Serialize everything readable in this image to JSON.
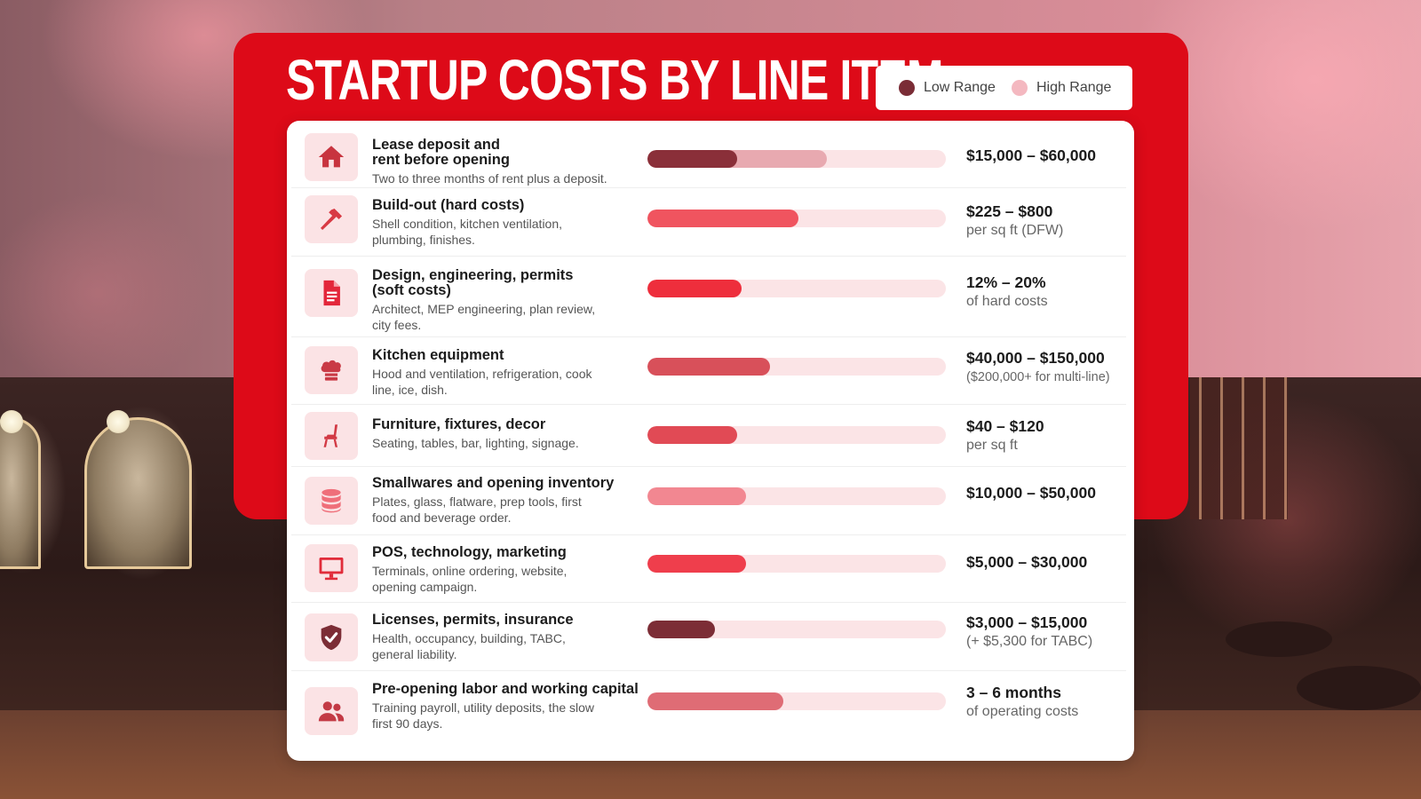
{
  "title": "STARTUP COSTS BY LINE ITEM",
  "legend": {
    "low": {
      "label": "Low Range",
      "color": "#7a2c36"
    },
    "high": {
      "label": "High Range",
      "color": "#f4b8c0"
    }
  },
  "chart_data": {
    "type": "bar",
    "title": "STARTUP COSTS BY LINE ITEM",
    "value_scale": "fraction of bar track (no axis printed)",
    "series": [
      {
        "name": "Low Range"
      },
      {
        "name": "High Range"
      }
    ],
    "items": [
      {
        "title": "Lease deposit and rent before opening",
        "desc": "Two to three months of rent plus a deposit.",
        "icon": "home-icon",
        "low": 0.3,
        "high": 0.6,
        "low_color": "#8a2f39",
        "high_color": "#e8a9b0",
        "value_main": "$15,000 – $60,000",
        "value_sub": ""
      },
      {
        "title": "Build-out (hard costs)",
        "desc": "Shell condition, kitchen ventilation, plumbing, finishes.",
        "icon": "hammer-icon",
        "low": 0.505,
        "high": 0.505,
        "low_color": "#f0545f",
        "high_color": "#f0545f",
        "value_main": "$225 – $800",
        "value_sub": "per sq ft (DFW)"
      },
      {
        "title": "Design, engineering, permits (soft costs)",
        "desc": "Architect, MEP engineering, plan review, city fees.",
        "icon": "document-icon",
        "low": 0.315,
        "high": 0.315,
        "low_color": "#ee2e3c",
        "high_color": "#ee2e3c",
        "value_main": "12% – 20%",
        "value_sub": "of hard costs"
      },
      {
        "title": "Kitchen equipment",
        "desc": "Hood and ventilation, refrigeration, cook line, ice, dish.",
        "icon": "chef-hat-icon",
        "low": 0.41,
        "high": 0.41,
        "low_color": "#d8505a",
        "high_color": "#d8505a",
        "value_main": "$40,000 – $150,000",
        "value_sub": "($200,000+ for multi-line)"
      },
      {
        "title": "Furniture, fixtures, decor",
        "desc": "Seating, tables, bar, lighting, signage.",
        "icon": "chair-icon",
        "low": 0.3,
        "high": 0.3,
        "low_color": "#e14a55",
        "high_color": "#e14a55",
        "value_main": "$40 – $120",
        "value_sub": "per sq ft"
      },
      {
        "title": "Smallwares and opening inventory",
        "desc": "Plates, glass, flatware, prep tools, first food and beverage order.",
        "icon": "stack-icon",
        "low": 0.33,
        "high": 0.33,
        "low_color": "#f28791",
        "high_color": "#f28791",
        "value_main": "$10,000 – $50,000",
        "value_sub": ""
      },
      {
        "title": "POS, technology, marketing",
        "desc": "Terminals, online ordering, website, opening campaign.",
        "icon": "monitor-icon",
        "low": 0.33,
        "high": 0.33,
        "low_color": "#ef3e4c",
        "high_color": "#ef3e4c",
        "value_main": "$5,000 – $30,000",
        "value_sub": ""
      },
      {
        "title": "Licenses, permits, insurance",
        "desc": "Health, occupancy, building, TABC, general liability.",
        "icon": "shield-check-icon",
        "low": 0.225,
        "high": 0.225,
        "low_color": "#7c2d36",
        "high_color": "#7c2d36",
        "value_main": "$3,000 – $15,000",
        "value_sub": "(+ $5,300 for TABC)"
      },
      {
        "title": "Pre-opening labor and working capital",
        "desc": "Training payroll, utility deposits, the slow first 90 days.",
        "icon": "people-icon",
        "low": 0.455,
        "high": 0.455,
        "low_color": "#df6c75",
        "high_color": "#df6c75",
        "value_main": "3 – 6 months",
        "value_sub": "of operating costs"
      }
    ]
  }
}
